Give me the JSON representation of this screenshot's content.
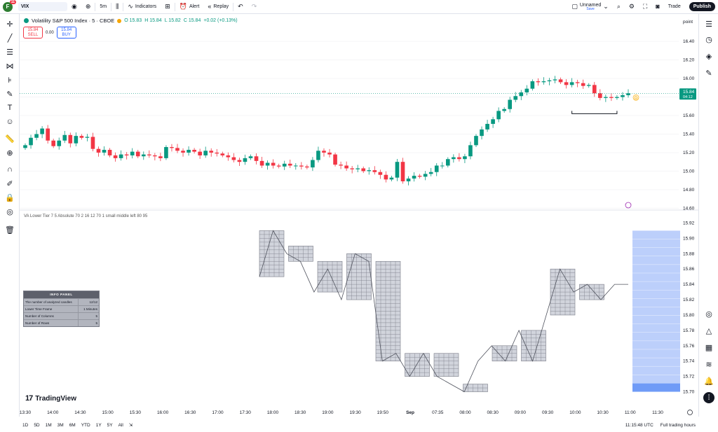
{
  "toolbar": {
    "avatar_letter": "F",
    "avatar_badge": "11",
    "symbol": "VIX",
    "timeframe": "5m",
    "indicators_label": "Indicators",
    "alert_label": "Alert",
    "replay_label": "Replay",
    "layout_name": "Unnamed",
    "layout_sub": "Save",
    "trade_label": "Trade",
    "publish_label": "Publish"
  },
  "legend": {
    "title": "Volatility S&P 500 Index · 5 · CBOE",
    "open": "O 15.83",
    "high": "H 15.84",
    "low": "L 15.82",
    "close": "C 15.84",
    "change": "+0.02 (+0.13%)",
    "d_badge": "D"
  },
  "trade": {
    "sell_price": "15.84",
    "sell_label": "SELL",
    "spread": "0.00",
    "buy_price": "15.84",
    "buy_label": "BUY"
  },
  "indicator_label": "VA  Lower Tier 7 5 Absolute 70 2 16 12 70 1 small middle left 80 95",
  "info_panel": {
    "title": "INFO PANEL",
    "rows": [
      {
        "k": "The number of analyzed candles",
        "v": "12/12"
      },
      {
        "k": "Lower Time Frame",
        "v": "1 Minutes"
      },
      {
        "k": "Number of Columns",
        "v": "5"
      },
      {
        "k": "Number of Rows",
        "v": "5"
      }
    ]
  },
  "logo_text": "TradingView",
  "bottom": {
    "ranges": [
      "1D",
      "5D",
      "1M",
      "3M",
      "6M",
      "YTD",
      "1Y",
      "5Y",
      "All"
    ],
    "time": "11:15:48 UTC",
    "session": "Full trading hours"
  },
  "colors": {
    "up": "#089981",
    "down": "#f23645",
    "accent": "#2962ff",
    "profile_fill": "#bccffb",
    "profile_poc": "#6f9bf7"
  },
  "chart_data": [
    {
      "type": "candlestick",
      "title": "Volatility S&P 500 Index · 5 · CBOE",
      "y_axis_label": "point",
      "ylim": [
        14.58,
        16.56
      ],
      "yticks": [
        "16.40",
        "16.20",
        "16.00",
        "15.80",
        "15.60",
        "15.40",
        "15.20",
        "15.00",
        "14.80",
        "14.60"
      ],
      "price_label": {
        "value": "15.84",
        "countdown": "04:12"
      },
      "closes": [
        15.28,
        15.36,
        15.4,
        15.46,
        15.33,
        15.27,
        15.33,
        15.39,
        15.3,
        15.38,
        15.36,
        15.37,
        15.24,
        15.2,
        15.23,
        15.17,
        15.14,
        15.18,
        15.17,
        15.21,
        15.16,
        15.18,
        15.17,
        15.16,
        15.14,
        15.26,
        15.25,
        15.22,
        15.2,
        15.23,
        15.21,
        15.17,
        15.22,
        15.2,
        15.19,
        15.17,
        15.15,
        15.12,
        15.1,
        15.14,
        15.16,
        15.11,
        15.06,
        15.09,
        15.06,
        15.05,
        15.08,
        15.06,
        15.06,
        15.05,
        15.04,
        15.12,
        15.22,
        15.2,
        15.18,
        15.07,
        15.06,
        15.03,
        15.02,
        15.03,
        15.0,
        15.01,
        14.99,
        14.96,
        14.91,
        14.93,
        15.1,
        14.89,
        14.92,
        14.95,
        14.94,
        14.97,
        14.99,
        15.06,
        15.06,
        15.13,
        15.15,
        15.13,
        15.16,
        15.28,
        15.38,
        15.45,
        15.51,
        15.56,
        15.65,
        15.67,
        15.77,
        15.81,
        15.85,
        15.89,
        15.97,
        15.96,
        15.97,
        15.98,
        15.99,
        15.96,
        15.93,
        15.96,
        15.95,
        15.92,
        15.93,
        15.84,
        15.79,
        15.8,
        15.79,
        15.8,
        15.82,
        15.84
      ],
      "x_labels": [
        "13:30",
        "14:00",
        "14:30",
        "15:00",
        "15:30",
        "16:00",
        "16:30",
        "17:00",
        "17:30",
        "18:00",
        "18:30",
        "19:00",
        "19:30",
        "19:50",
        "Sep",
        "07:35",
        "08:00",
        "08:30",
        "09:00",
        "09:30",
        "10:00",
        "10:30",
        "11:00",
        "11:30"
      ]
    },
    {
      "type": "volume_profile",
      "yticks": [
        "15.92",
        "15.90",
        "15.88",
        "15.86",
        "15.84",
        "15.82",
        "15.80",
        "15.78",
        "15.76",
        "15.74",
        "15.72",
        "15.70"
      ],
      "ylim": [
        15.695,
        15.925
      ],
      "boxes": [
        {
          "low": 15.85,
          "high": 15.91
        },
        {
          "low": 15.87,
          "high": 15.89
        },
        {
          "low": 15.83,
          "high": 15.87
        },
        {
          "low": 15.82,
          "high": 15.88
        },
        {
          "low": 15.74,
          "high": 15.87
        },
        {
          "low": 15.72,
          "high": 15.75
        },
        {
          "low": 15.72,
          "high": 15.75
        },
        {
          "low": 15.7,
          "high": 15.71
        },
        {
          "low": 15.74,
          "high": 15.76
        },
        {
          "low": 15.74,
          "high": 15.78
        },
        {
          "low": 15.8,
          "high": 15.86
        },
        {
          "low": 15.82,
          "high": 15.84
        }
      ],
      "path_prices": [
        15.85,
        15.91,
        15.88,
        15.87,
        15.83,
        15.86,
        15.82,
        15.88,
        15.87,
        15.74,
        15.75,
        15.72,
        15.75,
        15.72,
        15.71,
        15.7,
        15.74,
        15.76,
        15.74,
        15.78,
        15.74,
        15.8,
        15.86,
        15.83,
        15.84,
        15.82,
        15.84,
        15.84
      ],
      "profile": {
        "low": 15.7,
        "high": 15.91,
        "rows": 19,
        "poc_low": 15.7,
        "poc_high": 15.711
      }
    }
  ]
}
